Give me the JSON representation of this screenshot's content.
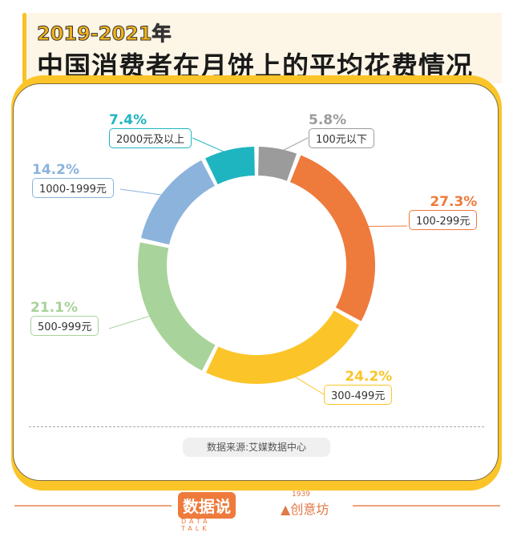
{
  "header": {
    "year": "2019-2021年",
    "title": "中国消费者在月饼上的平均花费情况"
  },
  "chart_data": {
    "type": "pie",
    "donut": true,
    "title": "中国消费者在月饼上的平均花费情况",
    "categories": [
      "100元以下",
      "100-299元",
      "300-499元",
      "500-999元",
      "1000-1999元",
      "2000元及以上"
    ],
    "values": [
      5.8,
      27.3,
      24.2,
      21.1,
      14.2,
      7.4
    ],
    "labels": [
      "5.8%",
      "27.3%",
      "24.2%",
      "21.1%",
      "14.2%",
      "7.4%"
    ],
    "colors": [
      "#9b9b9b",
      "#ee7a3c",
      "#fbc52a",
      "#a8d39a",
      "#8bb3dc",
      "#1fb5c0"
    ]
  },
  "source": "数据来源:艾媒数据中心",
  "footer": {
    "logo1": "数据说",
    "logo1_sub": "DATA TALK",
    "logo2": "创意坊",
    "logo2_year": "1939"
  }
}
